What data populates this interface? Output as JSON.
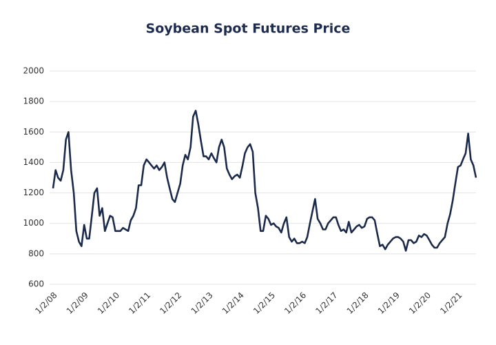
{
  "chart_data": {
    "type": "line",
    "title": "Soybean Spot Futures Price",
    "x": [
      "2008-01-02",
      "2008-02-01",
      "2008-03-01",
      "2008-04-01",
      "2008-05-01",
      "2008-06-01",
      "2008-07-01",
      "2008-08-01",
      "2008-09-01",
      "2008-10-01",
      "2008-11-01",
      "2008-12-01",
      "2009-01-01",
      "2009-02-01",
      "2009-03-01",
      "2009-04-01",
      "2009-05-01",
      "2009-06-01",
      "2009-07-01",
      "2009-08-01",
      "2009-09-01",
      "2009-10-01",
      "2009-11-01",
      "2009-12-01",
      "2010-01-01",
      "2010-02-01",
      "2010-03-01",
      "2010-04-01",
      "2010-05-01",
      "2010-06-01",
      "2010-07-01",
      "2010-08-01",
      "2010-09-01",
      "2010-10-01",
      "2010-11-01",
      "2010-12-01",
      "2011-01-01",
      "2011-02-01",
      "2011-03-01",
      "2011-04-01",
      "2011-05-01",
      "2011-06-01",
      "2011-07-01",
      "2011-08-01",
      "2011-09-01",
      "2011-10-01",
      "2011-11-01",
      "2011-12-01",
      "2012-01-01",
      "2012-02-01",
      "2012-03-01",
      "2012-04-01",
      "2012-05-01",
      "2012-06-01",
      "2012-07-01",
      "2012-08-01",
      "2012-09-01",
      "2012-10-01",
      "2012-11-01",
      "2012-12-01",
      "2013-01-01",
      "2013-02-01",
      "2013-03-01",
      "2013-04-01",
      "2013-05-01",
      "2013-06-01",
      "2013-07-01",
      "2013-08-01",
      "2013-09-01",
      "2013-10-01",
      "2013-11-01",
      "2013-12-01",
      "2014-01-01",
      "2014-02-01",
      "2014-03-01",
      "2014-04-01",
      "2014-05-01",
      "2014-06-01",
      "2014-07-01",
      "2014-08-01",
      "2014-09-01",
      "2014-10-01",
      "2014-11-01",
      "2014-12-01",
      "2015-01-01",
      "2015-02-01",
      "2015-03-01",
      "2015-04-01",
      "2015-05-01",
      "2015-06-01",
      "2015-07-01",
      "2015-08-01",
      "2015-09-01",
      "2015-10-01",
      "2015-11-01",
      "2015-12-01",
      "2016-01-01",
      "2016-02-01",
      "2016-03-01",
      "2016-04-01",
      "2016-05-01",
      "2016-06-01",
      "2016-07-01",
      "2016-08-01",
      "2016-09-01",
      "2016-10-01",
      "2016-11-01",
      "2016-12-01",
      "2017-01-01",
      "2017-02-01",
      "2017-03-01",
      "2017-04-01",
      "2017-05-01",
      "2017-06-01",
      "2017-07-01",
      "2017-08-01",
      "2017-09-01",
      "2017-10-01",
      "2017-11-01",
      "2017-12-01",
      "2018-01-01",
      "2018-02-01",
      "2018-03-01",
      "2018-04-01",
      "2018-05-01",
      "2018-06-01",
      "2018-07-01",
      "2018-08-01",
      "2018-09-01",
      "2018-10-01",
      "2018-11-01",
      "2018-12-01",
      "2019-01-01",
      "2019-02-01",
      "2019-03-01",
      "2019-04-01",
      "2019-05-01",
      "2019-06-01",
      "2019-07-01",
      "2019-08-01",
      "2019-09-01",
      "2019-10-01",
      "2019-11-01",
      "2019-12-01",
      "2020-01-01",
      "2020-02-01",
      "2020-03-01",
      "2020-04-01",
      "2020-05-01",
      "2020-06-01",
      "2020-07-01",
      "2020-08-01",
      "2020-09-01",
      "2020-10-01",
      "2020-11-01",
      "2020-12-01",
      "2021-01-01",
      "2021-02-01",
      "2021-03-01",
      "2021-04-01",
      "2021-05-01",
      "2021-06-01",
      "2021-07-01",
      "2021-08-01"
    ],
    "values": [
      1230,
      1350,
      1300,
      1280,
      1350,
      1550,
      1600,
      1350,
      1200,
      950,
      880,
      850,
      990,
      900,
      900,
      1050,
      1200,
      1230,
      1050,
      1100,
      950,
      1000,
      1050,
      1040,
      950,
      950,
      950,
      970,
      960,
      950,
      1020,
      1050,
      1100,
      1250,
      1250,
      1380,
      1420,
      1400,
      1380,
      1360,
      1380,
      1350,
      1370,
      1400,
      1300,
      1230,
      1160,
      1140,
      1200,
      1260,
      1380,
      1450,
      1420,
      1500,
      1700,
      1740,
      1650,
      1540,
      1440,
      1440,
      1420,
      1460,
      1430,
      1400,
      1500,
      1550,
      1500,
      1360,
      1320,
      1290,
      1310,
      1320,
      1300,
      1380,
      1460,
      1500,
      1520,
      1470,
      1200,
      1100,
      950,
      950,
      1050,
      1030,
      990,
      1000,
      980,
      970,
      940,
      1000,
      1040,
      910,
      880,
      900,
      870,
      870,
      880,
      870,
      910,
      1000,
      1080,
      1160,
      1030,
      1000,
      960,
      960,
      1000,
      1020,
      1040,
      1040,
      990,
      950,
      960,
      940,
      1010,
      940,
      960,
      980,
      990,
      970,
      980,
      1030,
      1040,
      1040,
      1020,
      930,
      850,
      860,
      830,
      860,
      880,
      900,
      910,
      910,
      900,
      880,
      820,
      890,
      890,
      870,
      880,
      920,
      910,
      930,
      920,
      890,
      860,
      840,
      840,
      870,
      890,
      910,
      1000,
      1060,
      1150,
      1260,
      1370,
      1380,
      1420,
      1460,
      1590,
      1420,
      1380,
      1300
    ],
    "color": "#1b2a4a",
    "xlim": [
      "2008-01-02",
      "2021-08-01"
    ],
    "xticks": [
      {
        "value": "2008-01-02",
        "label": "1/2/08"
      },
      {
        "value": "2009-01-02",
        "label": "1/2/09"
      },
      {
        "value": "2010-01-02",
        "label": "1/2/10"
      },
      {
        "value": "2011-01-02",
        "label": "1/2/11"
      },
      {
        "value": "2012-01-02",
        "label": "1/2/12"
      },
      {
        "value": "2013-01-02",
        "label": "1/2/13"
      },
      {
        "value": "2014-01-02",
        "label": "1/2/14"
      },
      {
        "value": "2015-01-02",
        "label": "1/2/15"
      },
      {
        "value": "2016-01-02",
        "label": "1/2/16"
      },
      {
        "value": "2017-01-02",
        "label": "1/2/17"
      },
      {
        "value": "2018-01-02",
        "label": "1/2/18"
      },
      {
        "value": "2019-01-02",
        "label": "1/2/19"
      },
      {
        "value": "2020-01-02",
        "label": "1/2/20"
      },
      {
        "value": "2021-01-02",
        "label": "1/2/21"
      }
    ],
    "ylim": [
      600,
      2000
    ],
    "yticks": [
      600,
      800,
      1000,
      1200,
      1400,
      1600,
      1800,
      2000
    ],
    "grid": true
  }
}
